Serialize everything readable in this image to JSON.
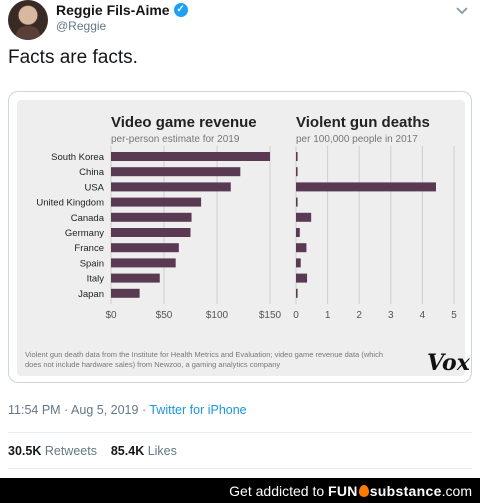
{
  "tweet": {
    "author_name": "Reggie Fils-Aime",
    "handle": "@Reggie",
    "text": "Facts are facts.",
    "time": "11:54 PM",
    "date": "Aug 5, 2019",
    "separator": "·",
    "via": "Twitter for iPhone",
    "retweets_count": "30.5K",
    "retweets_label": "Retweets",
    "likes_count": "85.4K",
    "likes_label": "Likes"
  },
  "icons": {
    "verified": "verified-badge-icon",
    "menu": "chevron-down-icon"
  },
  "colors": {
    "bar": "#5a3a52",
    "link": "#1b95e0",
    "verified": "#1da1f2"
  },
  "chart_data": [
    {
      "type": "bar",
      "orientation": "horizontal",
      "title": "Video game revenue",
      "subtitle": "per-person estimate for 2019",
      "categories": [
        "South Korea",
        "China",
        "USA",
        "United Kingdom",
        "Canada",
        "Germany",
        "France",
        "Spain",
        "Italy",
        "Japan"
      ],
      "values": [
        150,
        122,
        113,
        85,
        76,
        75,
        64,
        61,
        46,
        27
      ],
      "xlim": [
        0,
        150
      ],
      "xticks": [
        "$0",
        "$50",
        "$100",
        "$150"
      ],
      "grid": true
    },
    {
      "type": "bar",
      "orientation": "horizontal",
      "title": "Violent gun deaths",
      "subtitle": "per 100,000 people in 2017",
      "categories": [
        "South Korea",
        "China",
        "USA",
        "United Kingdom",
        "Canada",
        "Germany",
        "France",
        "Spain",
        "Italy",
        "Japan"
      ],
      "values": [
        0.05,
        0.05,
        4.43,
        0.05,
        0.48,
        0.12,
        0.33,
        0.15,
        0.35,
        0.05
      ],
      "xlim": [
        0,
        5
      ],
      "xticks": [
        "0",
        "1",
        "2",
        "3",
        "4",
        "5"
      ],
      "grid": true
    }
  ],
  "chart_source": "Violent gun death data from the Institute for Health Metrics and Evaluation; video game revenue data (which does not include hardware sales) from Newzoo, a gaming analytics company",
  "chart_brand": "Vox",
  "footer": {
    "prefix": "Get addicted to",
    "brand_left": "FUN",
    "brand_right": "substance",
    "suffix": ".com"
  }
}
